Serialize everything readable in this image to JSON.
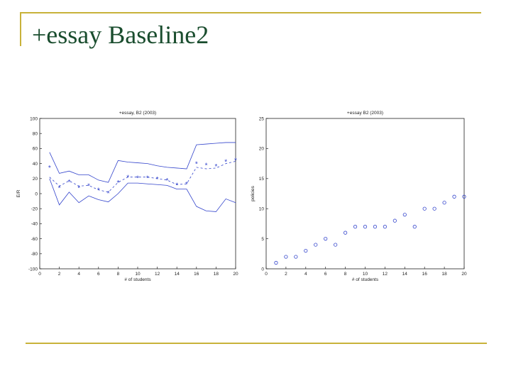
{
  "slide": {
    "title": "+essay Baseline2"
  },
  "colors": {
    "frame": "#c8b23a",
    "title": "#1a4d2e",
    "series": "#3344cc",
    "axis": "#222222"
  },
  "chart_data": [
    {
      "type": "line",
      "title": "+essay, B2 (2003)",
      "xlabel": "# of students",
      "ylabel": "E/R",
      "xlim": [
        0,
        20
      ],
      "ylim": [
        -100,
        100
      ],
      "xticks": [
        0,
        2,
        4,
        6,
        8,
        10,
        12,
        14,
        16,
        18,
        20
      ],
      "yticks": [
        -100,
        -80,
        -60,
        -40,
        -20,
        0,
        20,
        40,
        60,
        80,
        100
      ],
      "grid": false,
      "x": [
        1,
        2,
        3,
        4,
        5,
        6,
        7,
        8,
        9,
        10,
        11,
        12,
        13,
        14,
        15,
        16,
        17,
        18,
        19,
        20
      ],
      "series": [
        {
          "style": "solid-upper",
          "values": [
            55,
            27,
            30,
            25,
            25,
            18,
            15,
            44,
            42,
            41,
            40,
            37,
            35,
            34,
            33,
            65,
            66,
            67,
            68,
            68
          ]
        },
        {
          "style": "dashed-mean",
          "values": [
            22,
            10,
            17,
            10,
            11,
            5,
            2,
            15,
            22,
            22,
            22,
            20,
            18,
            12,
            13,
            35,
            33,
            34,
            40,
            43
          ]
        },
        {
          "style": "markers",
          "values": [
            35,
            8,
            16,
            8,
            11,
            5,
            1,
            15,
            22,
            21,
            21,
            20,
            18,
            12,
            13,
            40,
            38,
            37,
            43,
            45
          ]
        },
        {
          "style": "solid-lower",
          "values": [
            20,
            -15,
            2,
            -12,
            -3,
            -8,
            -11,
            0,
            14,
            14,
            13,
            12,
            11,
            6,
            6,
            -17,
            -23,
            -24,
            -7,
            -12
          ]
        }
      ]
    },
    {
      "type": "scatter",
      "title": "+essay B2 (2003)",
      "xlabel": "# of students",
      "ylabel": "policies",
      "xlim": [
        0,
        20
      ],
      "ylim": [
        0,
        25
      ],
      "xticks": [
        0,
        2,
        4,
        6,
        8,
        10,
        12,
        14,
        16,
        18,
        20
      ],
      "yticks": [
        0,
        5,
        10,
        15,
        20,
        25
      ],
      "grid": false,
      "x": [
        1,
        2,
        3,
        4,
        5,
        6,
        7,
        8,
        9,
        10,
        11,
        12,
        13,
        14,
        15,
        16,
        17,
        18,
        19,
        20
      ],
      "y": [
        1,
        2,
        2,
        3,
        4,
        5,
        4,
        6,
        7,
        7,
        7,
        7,
        8,
        9,
        7,
        10,
        10,
        11,
        12,
        12
      ]
    }
  ]
}
